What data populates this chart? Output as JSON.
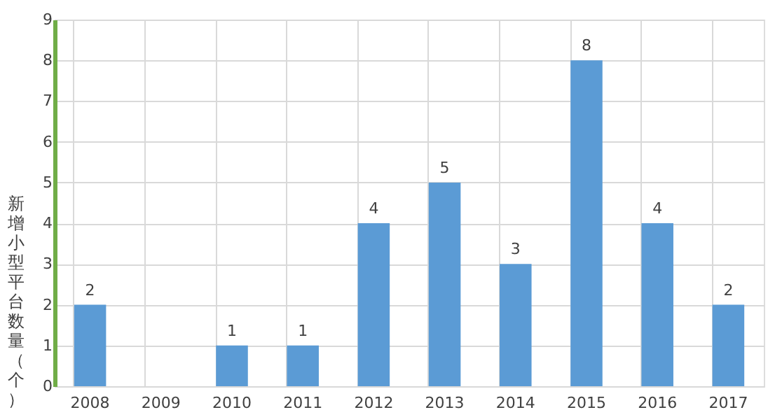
{
  "chart_data": {
    "type": "bar",
    "ylabel": "新增小型平台数量（个）",
    "categories": [
      "2008",
      "2009",
      "2010",
      "2011",
      "2012",
      "2013",
      "2014",
      "2015",
      "2016",
      "2017"
    ],
    "values": [
      2,
      0,
      1,
      1,
      4,
      5,
      3,
      8,
      4,
      2
    ],
    "value_labels": [
      "2",
      null,
      "1",
      "1",
      "4",
      "5",
      "3",
      "8",
      "4",
      "2"
    ],
    "color": "#5b9bd5",
    "ylim": [
      0,
      9
    ],
    "yticks": [
      0,
      1,
      2,
      3,
      4,
      5,
      6,
      7,
      8,
      9
    ],
    "grid": true
  }
}
